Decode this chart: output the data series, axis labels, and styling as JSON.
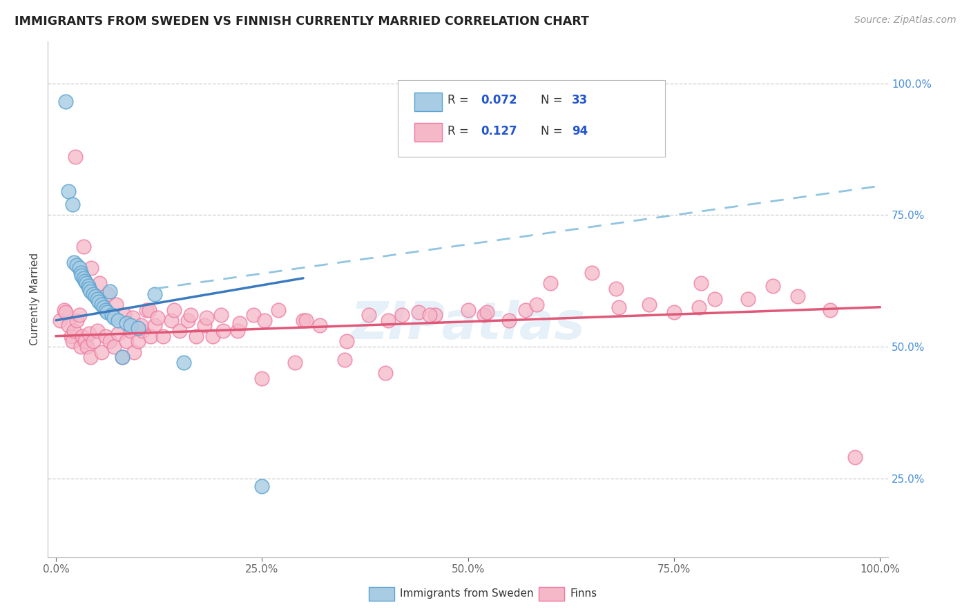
{
  "title": "IMMIGRANTS FROM SWEDEN VS FINNISH CURRENTLY MARRIED CORRELATION CHART",
  "source": "Source: ZipAtlas.com",
  "ylabel": "Currently Married",
  "x_lim": [
    -1,
    101
  ],
  "y_lim": [
    10,
    108
  ],
  "legend_label1": "Immigrants from Sweden",
  "legend_label2": "Finns",
  "blue_color": "#a8cce4",
  "pink_color": "#f4b8c8",
  "blue_edge": "#5ba3d0",
  "pink_edge": "#f078a0",
  "blue_trend_color": "#3a7abf",
  "pink_trend_color": "#e05878",
  "dashed_color": "#90c4e0",
  "watermark": "ZIPatlas",
  "blue_x": [
    1.2,
    1.5,
    2.0,
    2.2,
    2.5,
    2.8,
    3.0,
    3.1,
    3.3,
    3.5,
    3.7,
    3.9,
    4.0,
    4.2,
    4.5,
    4.8,
    5.0,
    5.2,
    5.5,
    5.8,
    6.0,
    6.2,
    6.5,
    6.8,
    7.0,
    7.5,
    8.0,
    8.5,
    9.0,
    10.0,
    12.0,
    15.5,
    25.0
  ],
  "blue_y": [
    96.5,
    79.5,
    77.0,
    66.0,
    65.5,
    65.0,
    64.0,
    63.5,
    63.0,
    62.5,
    62.0,
    61.5,
    61.0,
    60.5,
    60.0,
    59.5,
    59.0,
    58.5,
    58.0,
    57.5,
    57.0,
    56.5,
    60.5,
    56.0,
    55.5,
    55.0,
    48.0,
    54.5,
    54.0,
    53.5,
    60.0,
    47.0,
    23.5
  ],
  "pink_x": [
    0.5,
    1.0,
    1.2,
    1.5,
    1.8,
    2.0,
    2.2,
    2.5,
    2.8,
    3.0,
    3.2,
    3.5,
    3.8,
    4.0,
    4.2,
    4.5,
    5.0,
    5.5,
    6.0,
    6.5,
    7.0,
    7.5,
    8.0,
    8.5,
    9.0,
    9.5,
    10.0,
    10.5,
    11.0,
    11.5,
    12.0,
    13.0,
    14.0,
    15.0,
    16.0,
    17.0,
    18.0,
    19.0,
    20.0,
    22.0,
    24.0,
    25.0,
    27.0,
    29.0,
    30.0,
    32.0,
    35.0,
    38.0,
    40.0,
    42.0,
    44.0,
    46.0,
    50.0,
    52.0,
    55.0,
    57.0,
    60.0,
    65.0,
    68.0,
    72.0,
    75.0,
    78.0,
    80.0,
    84.0,
    87.0,
    90.0,
    94.0,
    97.0,
    2.3,
    3.3,
    4.3,
    5.3,
    6.3,
    7.3,
    8.3,
    9.3,
    10.3,
    11.3,
    12.3,
    14.3,
    16.3,
    18.3,
    20.3,
    22.3,
    25.3,
    30.3,
    35.3,
    40.3,
    45.3,
    52.3,
    58.3,
    68.3,
    78.3
  ],
  "pink_y": [
    55.0,
    57.0,
    56.5,
    54.0,
    52.0,
    51.0,
    53.0,
    55.0,
    56.0,
    50.0,
    52.0,
    51.0,
    50.0,
    52.5,
    48.0,
    51.0,
    53.0,
    49.0,
    52.0,
    51.0,
    50.0,
    52.5,
    48.0,
    51.0,
    53.0,
    49.0,
    51.0,
    53.0,
    57.0,
    52.0,
    54.0,
    52.0,
    55.0,
    53.0,
    55.0,
    52.0,
    54.0,
    52.0,
    56.0,
    53.0,
    56.0,
    44.0,
    57.0,
    47.0,
    55.0,
    54.0,
    47.5,
    56.0,
    45.0,
    56.0,
    56.5,
    56.0,
    57.0,
    56.0,
    55.0,
    57.0,
    62.0,
    64.0,
    61.0,
    58.0,
    56.5,
    57.5,
    59.0,
    59.0,
    61.5,
    59.5,
    57.0,
    29.0,
    86.0,
    69.0,
    65.0,
    62.0,
    60.0,
    58.0,
    56.0,
    55.5,
    54.0,
    57.0,
    55.5,
    57.0,
    56.0,
    55.5,
    53.0,
    54.5,
    55.0,
    55.0,
    51.0,
    55.0,
    56.0,
    56.5,
    58.0,
    57.5,
    62.0
  ],
  "blue_trend_x0": 0,
  "blue_trend_y0": 55.0,
  "blue_trend_x1": 30,
  "blue_trend_y1": 63.0,
  "dashed_x0": 12,
  "dashed_y0": 61.0,
  "dashed_x1": 100,
  "dashed_y1": 80.5,
  "pink_trend_x0": 0,
  "pink_trend_y0": 52.0,
  "pink_trend_x1": 100,
  "pink_trend_y1": 57.5
}
